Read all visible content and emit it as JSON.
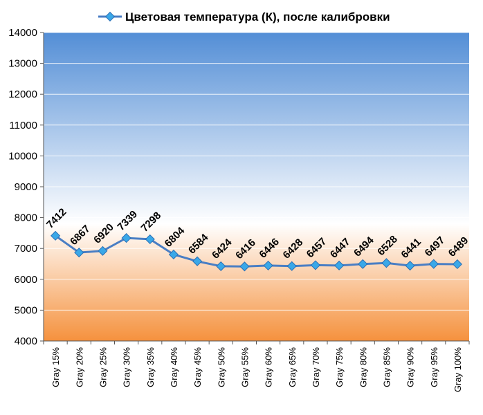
{
  "chart_data": {
    "type": "line",
    "title": "Цветовая температура (К), после калибровки",
    "categories": [
      "Gray 15%",
      "Gray 20%",
      "Gray 25%",
      "Gray 30%",
      "Gray 35%",
      "Gray 40%",
      "Gray 45%",
      "Gray 50%",
      "Gray 55%",
      "Gray 60%",
      "Gray 65%",
      "Gray 70%",
      "Gray 75%",
      "Gray 80%",
      "Gray 85%",
      "Gray 90%",
      "Gray 95%",
      "Gray 100%"
    ],
    "series": [
      {
        "name": "Цветовая температура (К), после калибровки",
        "values": [
          7412,
          6867,
          6920,
          7339,
          7298,
          6804,
          6584,
          6424,
          6416,
          6446,
          6428,
          6457,
          6447,
          6494,
          6528,
          6441,
          6497,
          6489
        ],
        "color": "#4a7ec4"
      }
    ],
    "ylim": [
      4000,
      14000
    ],
    "yticks": [
      4000,
      5000,
      6000,
      7000,
      8000,
      9000,
      10000,
      11000,
      12000,
      13000,
      14000
    ],
    "grid": true,
    "legend": "top",
    "background_gradient": {
      "top": "#538ed6",
      "middle": "#ffffff",
      "bottom": "#f5913d"
    }
  }
}
